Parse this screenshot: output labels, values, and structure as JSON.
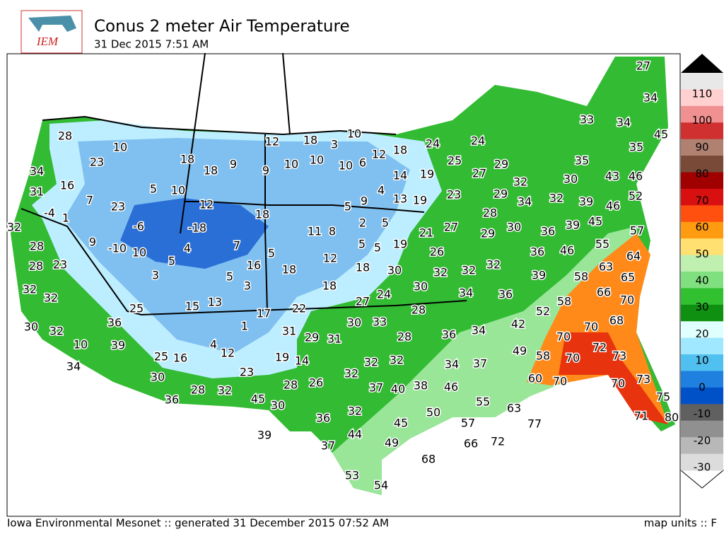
{
  "header": {
    "logo_text": "IEM",
    "title": "Conus 2 meter Air Temperature",
    "subtitle": "31 Dec 2015 7:51 AM"
  },
  "footer": {
    "left": "Iowa Environmental Mesonet :: generated 31 December 2015 07:52 AM",
    "right": "map units :: F"
  },
  "colorbar": {
    "ticks": [
      110,
      100,
      90,
      80,
      70,
      60,
      50,
      40,
      30,
      20,
      10,
      0,
      -10,
      -20,
      -30
    ]
  },
  "stations": [
    28,
    10,
    23,
    34,
    16,
    31,
    7,
    23,
    5,
    10,
    18,
    18,
    9,
    9,
    12,
    18,
    3,
    10,
    10,
    10,
    10,
    6,
    12,
    18,
    24,
    25,
    24,
    14,
    19,
    4,
    9,
    5,
    13,
    19,
    23,
    27,
    29,
    32,
    29,
    33,
    34,
    27,
    34,
    45,
    35,
    35,
    43,
    46,
    30,
    52,
    32,
    39,
    46,
    34,
    28,
    29,
    30,
    36,
    39,
    45,
    57,
    55,
    64,
    46,
    36,
    63,
    65,
    58,
    39,
    66,
    70,
    58,
    52,
    68,
    70,
    70,
    72,
    73,
    70,
    42,
    49,
    58,
    60,
    70,
    70,
    73,
    75,
    71,
    80,
    77,
    63,
    55,
    57,
    66,
    72,
    68,
    50,
    46,
    37,
    34,
    34,
    36,
    38,
    40,
    37,
    32,
    32,
    28,
    33,
    30,
    31,
    29,
    31,
    14,
    19,
    32,
    26,
    28,
    45,
    30,
    36,
    32,
    44,
    45,
    49,
    37,
    39,
    53,
    54,
    32,
    28,
    36,
    30,
    25,
    16,
    12,
    4,
    23,
    1,
    39,
    36,
    10,
    34,
    32,
    30,
    32,
    32,
    28,
    23,
    28,
    32,
    -4,
    1,
    9,
    -10,
    10,
    3,
    5,
    4,
    -6,
    12,
    -18,
    7,
    5,
    3,
    16,
    5,
    18,
    18,
    11,
    8,
    12,
    2,
    5,
    5,
    5,
    19,
    21,
    27,
    26,
    30,
    18,
    18,
    32,
    32,
    32,
    30,
    24,
    27,
    22,
    17,
    13,
    15,
    25,
    34,
    36,
    28
  ]
}
